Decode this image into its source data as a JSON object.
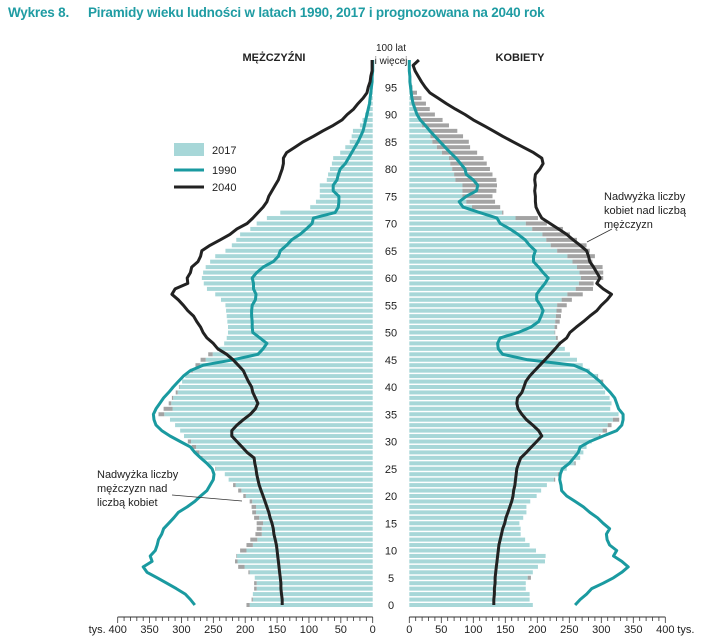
{
  "header": {
    "figure_label": "Wykres 8.",
    "title": "Piramidy wieku ludności w latach 1990, 2017 i prognozowana na 2040 rok"
  },
  "chart_data": {
    "type": "population-pyramid",
    "title": "Piramidy wieku ludności w latach 1990, 2017 i prognozowana na 2040 rok",
    "left_label": "MĘŻCZYŹNI",
    "right_label": "KOBIETY",
    "top_age_label": [
      "100 lat",
      "i więcej"
    ],
    "age_ticks": [
      0,
      5,
      10,
      15,
      20,
      25,
      30,
      35,
      40,
      45,
      50,
      55,
      60,
      65,
      70,
      75,
      80,
      85,
      90,
      95
    ],
    "x_ticks": [
      0,
      50,
      100,
      150,
      200,
      250,
      300,
      350,
      400
    ],
    "x_unit": "tys.",
    "xlim": [
      0,
      400
    ],
    "ages": "0-100",
    "legend": {
      "placement": "upper-left",
      "items": [
        {
          "name": "2017",
          "kind": "bar",
          "color": "#a7d7d8"
        },
        {
          "name": "1990",
          "kind": "line",
          "color": "#1a9aa0"
        },
        {
          "name": "2040",
          "kind": "line",
          "color": "#222222"
        }
      ]
    },
    "excess_color": "#a3a3a3",
    "annotations": {
      "male_excess": [
        "Nadwyżka liczby",
        "mężczyzn nad",
        "liczbą kobiet"
      ],
      "female_excess": [
        "Nadwyżka liczby",
        "kobiet nad liczbą",
        "mężczyzn"
      ]
    },
    "series": {
      "male_2017": [
        198,
        190,
        188,
        186,
        186,
        185,
        195,
        211,
        216,
        214,
        208,
        198,
        192,
        184,
        182,
        182,
        186,
        189,
        190,
        193,
        203,
        211,
        219,
        226,
        232,
        247,
        258,
        270,
        278,
        284,
        290,
        296,
        302,
        310,
        318,
        336,
        328,
        320,
        315,
        309,
        304,
        299,
        294,
        286,
        278,
        270,
        258,
        244,
        233,
        229,
        227,
        227,
        228,
        229,
        230,
        231,
        238,
        247,
        260,
        265,
        268,
        266,
        262,
        255,
        247,
        231,
        221,
        214,
        208,
        192,
        182,
        166,
        145,
        98,
        89,
        83,
        83,
        83,
        72,
        70,
        67,
        64,
        62,
        51,
        43,
        36,
        33,
        31,
        20,
        16,
        12,
        8,
        4,
        3,
        2,
        1,
        1,
        0,
        0,
        0,
        0
      ],
      "female_2017": [
        193,
        188,
        188,
        182,
        182,
        190,
        193,
        201,
        212,
        213,
        198,
        188,
        181,
        174,
        174,
        172,
        178,
        183,
        183,
        189,
        199,
        206,
        215,
        228,
        235,
        246,
        260,
        267,
        272,
        277,
        285,
        299,
        309,
        316,
        328,
        327,
        314,
        316,
        313,
        306,
        303,
        303,
        295,
        282,
        271,
        262,
        251,
        243,
        237,
        232,
        228,
        231,
        235,
        237,
        238,
        246,
        254,
        271,
        287,
        288,
        303,
        303,
        302,
        286,
        290,
        282,
        277,
        262,
        251,
        240,
        215,
        201,
        147,
        142,
        134,
        130,
        136,
        137,
        136,
        130,
        126,
        121,
        116,
        106,
        95,
        93,
        84,
        75,
        62,
        52,
        40,
        32,
        26,
        19,
        12,
        5,
        3,
        2,
        1,
        1,
        0
      ],
      "male_1990": [
        279,
        286,
        294,
        308,
        323,
        338,
        354,
        360,
        346,
        349,
        341,
        338,
        336,
        331,
        328,
        320,
        312,
        305,
        291,
        279,
        270,
        260,
        255,
        250,
        249,
        252,
        260,
        270,
        279,
        286,
        302,
        318,
        331,
        340,
        343,
        344,
        340,
        334,
        328,
        320,
        313,
        305,
        297,
        286,
        266,
        219,
        180,
        172,
        166,
        177,
        188,
        189,
        189,
        190,
        190,
        189,
        184,
        183,
        187,
        187,
        189,
        182,
        172,
        156,
        148,
        145,
        135,
        127,
        114,
        104,
        95,
        93,
        59,
        54,
        53,
        53,
        62,
        62,
        56,
        54,
        51,
        43,
        38,
        33,
        28,
        23,
        19,
        15,
        13,
        11,
        9,
        7,
        5,
        4,
        3,
        2,
        1,
        1,
        0,
        0,
        0
      ],
      "female_1990": [
        259,
        267,
        277,
        285,
        303,
        319,
        332,
        342,
        332,
        319,
        324,
        313,
        309,
        308,
        313,
        303,
        294,
        282,
        272,
        259,
        246,
        238,
        237,
        235,
        236,
        239,
        250,
        257,
        264,
        267,
        282,
        303,
        324,
        332,
        334,
        334,
        327,
        324,
        321,
        314,
        306,
        298,
        288,
        277,
        257,
        185,
        146,
        139,
        138,
        142,
        170,
        190,
        202,
        206,
        209,
        205,
        199,
        199,
        205,
        212,
        217,
        209,
        202,
        194,
        194,
        197,
        188,
        181,
        170,
        157,
        142,
        137,
        110,
        84,
        78,
        89,
        105,
        107,
        100,
        89,
        87,
        80,
        73,
        64,
        56,
        48,
        40,
        32,
        25,
        17,
        12,
        9,
        6,
        4,
        3,
        2,
        1,
        1,
        0,
        0,
        0
      ],
      "male_2040": [
        142,
        142,
        143,
        144,
        144,
        145,
        146,
        147,
        148,
        149,
        150,
        151,
        153,
        155,
        156,
        158,
        161,
        163,
        166,
        169,
        172,
        175,
        178,
        180,
        182,
        183,
        185,
        186,
        197,
        205,
        213,
        221,
        221,
        213,
        203,
        192,
        184,
        180,
        184,
        188,
        190,
        195,
        199,
        203,
        211,
        219,
        229,
        243,
        250,
        260,
        266,
        270,
        276,
        281,
        290,
        297,
        305,
        315,
        310,
        290,
        291,
        286,
        284,
        274,
        270,
        268,
        255,
        239,
        224,
        213,
        197,
        188,
        180,
        172,
        166,
        163,
        158,
        153,
        148,
        145,
        142,
        140,
        140,
        135,
        122,
        109,
        93,
        78,
        62,
        48,
        40,
        30,
        23,
        15,
        9,
        7,
        4,
        3,
        1,
        1,
        1
      ],
      "female_2040": [
        132,
        132,
        133,
        133,
        134,
        134,
        135,
        136,
        137,
        138,
        139,
        140,
        142,
        144,
        146,
        149,
        151,
        154,
        157,
        160,
        162,
        163,
        165,
        166,
        167,
        168,
        171,
        174,
        183,
        191,
        199,
        207,
        202,
        193,
        183,
        176,
        170,
        168,
        169,
        176,
        179,
        182,
        188,
        196,
        204,
        212,
        220,
        228,
        235,
        246,
        251,
        261,
        272,
        282,
        293,
        300,
        309,
        316,
        303,
        293,
        298,
        293,
        288,
        282,
        280,
        277,
        267,
        256,
        246,
        233,
        220,
        207,
        202,
        198,
        197,
        197,
        196,
        197,
        196,
        197,
        204,
        209,
        207,
        194,
        178,
        162,
        146,
        131,
        116,
        100,
        87,
        72,
        58,
        45,
        32,
        25,
        19,
        14,
        9,
        6,
        15
      ]
    }
  }
}
